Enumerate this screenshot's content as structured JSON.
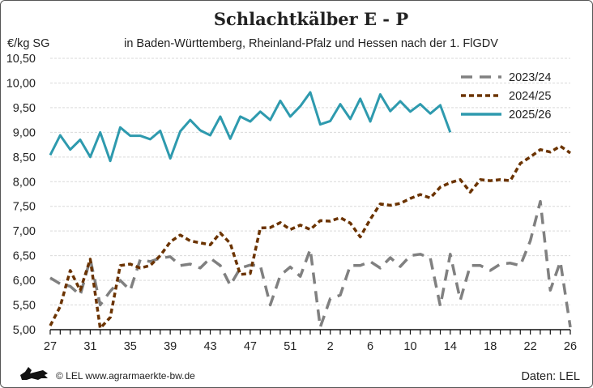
{
  "chart_data": {
    "type": "line",
    "title": "Schlachtkälber E - P",
    "subtitle": "in Baden-Württemberg, Rheinland-Pfalz und Hessen nach der 1. FlGDV",
    "ylabel": "€/kg SG",
    "xlabel": "",
    "ylim": [
      5.0,
      10.5
    ],
    "yticks": [
      "5,00",
      "5,50",
      "6,00",
      "6,50",
      "7,00",
      "7,50",
      "8,00",
      "8,50",
      "9,00",
      "9,50",
      "10,00",
      "10,50"
    ],
    "x_weeks": [
      27,
      28,
      29,
      30,
      31,
      32,
      33,
      34,
      35,
      36,
      37,
      38,
      39,
      40,
      41,
      42,
      43,
      44,
      45,
      46,
      47,
      48,
      49,
      50,
      51,
      52,
      53,
      1,
      2,
      3,
      4,
      5,
      6,
      7,
      8,
      9,
      10,
      11,
      12,
      13,
      14,
      15,
      16,
      17,
      18,
      19,
      20,
      21,
      22,
      23,
      24,
      25,
      26
    ],
    "xtick_labels": [
      "27",
      "31",
      "35",
      "39",
      "43",
      "47",
      "51",
      "2",
      "6",
      "10",
      "14",
      "18",
      "22",
      "26"
    ],
    "grid": "horizontal",
    "legend_position": "top-right",
    "series": [
      {
        "name": "2023/24",
        "color": "#808080",
        "style": "dashed-long",
        "values": [
          6.05,
          5.93,
          5.88,
          5.7,
          6.43,
          5.5,
          5.78,
          6.0,
          5.8,
          6.42,
          6.38,
          6.45,
          6.48,
          6.3,
          6.33,
          6.25,
          6.45,
          6.3,
          5.9,
          6.25,
          6.31,
          6.3,
          5.5,
          6.1,
          6.27,
          6.08,
          6.63,
          5.05,
          5.63,
          5.7,
          6.3,
          6.3,
          6.38,
          6.25,
          6.46,
          6.28,
          6.5,
          6.53,
          6.45,
          5.48,
          6.53,
          5.6,
          6.3,
          6.3,
          6.2,
          6.33,
          6.35,
          6.3,
          6.8,
          7.6,
          5.8,
          6.38,
          5.05
        ]
      },
      {
        "name": "2024/25",
        "color": "#6b3300",
        "style": "dashed-short",
        "values": [
          5.08,
          5.47,
          6.2,
          5.8,
          6.43,
          5.03,
          5.25,
          6.3,
          6.33,
          6.25,
          6.3,
          6.5,
          6.78,
          6.92,
          6.8,
          6.76,
          6.72,
          6.96,
          6.75,
          6.12,
          6.14,
          7.06,
          7.07,
          7.17,
          7.03,
          7.12,
          7.03,
          7.21,
          7.2,
          7.27,
          7.16,
          6.88,
          7.24,
          7.55,
          7.52,
          7.56,
          7.66,
          7.74,
          7.67,
          7.89,
          7.98,
          8.04,
          7.79,
          8.04,
          8.02,
          8.04,
          8.02,
          8.37,
          8.5,
          8.65,
          8.6,
          8.72,
          8.58
        ]
      },
      {
        "name": "2025/26",
        "color": "#2e9aae",
        "style": "solid",
        "values": [
          8.54,
          8.94,
          8.65,
          8.85,
          8.5,
          9.0,
          8.42,
          9.1,
          8.93,
          8.93,
          8.86,
          9.03,
          8.47,
          9.02,
          9.25,
          9.04,
          8.94,
          9.32,
          8.87,
          9.32,
          9.22,
          9.42,
          9.25,
          9.64,
          9.32,
          9.53,
          9.81,
          9.16,
          9.23,
          9.57,
          9.27,
          9.68,
          9.22,
          9.77,
          9.43,
          9.63,
          9.42,
          9.57,
          9.38,
          9.55,
          9.0
        ]
      }
    ]
  },
  "footer": {
    "copyright": "© LEL www.agrarmaerkte-bw.de",
    "source": "Daten:  LEL",
    "logo": "lion-logo"
  }
}
